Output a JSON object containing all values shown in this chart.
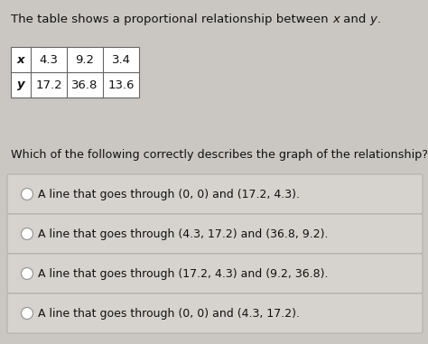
{
  "bg_color": "#cac7c2",
  "title_parts": [
    {
      "text": "The table shows a proportional relationship between ",
      "style": "normal"
    },
    {
      "text": "x",
      "style": "italic"
    },
    {
      "text": " and ",
      "style": "normal"
    },
    {
      "text": "y",
      "style": "italic"
    },
    {
      "text": ".",
      "style": "normal"
    }
  ],
  "table": {
    "row_labels": [
      "x",
      "y"
    ],
    "col1": [
      "4.3",
      "17.2"
    ],
    "col2": [
      "9.2",
      "36.8"
    ],
    "col3": [
      "3.4",
      "13.6"
    ]
  },
  "question": "Which of the following correctly describes the graph of the relationship?",
  "options": [
    "A line that goes through (0, 0) and (17.2, 4.3).",
    "A line that goes through (4.3, 17.2) and (36.8, 9.2).",
    "A line that goes through (17.2, 4.3) and (9.2, 36.8).",
    "A line that goes through (0, 0) and (4.3, 17.2)."
  ],
  "option_box_color": "#d6d3ce",
  "option_border_color": "#b0ada8",
  "text_color": "#111111",
  "circle_color": "#999999",
  "table_border_color": "#666666",
  "table_bg": "#ffffff",
  "fig_width": 4.74,
  "fig_height": 3.81,
  "dpi": 100
}
